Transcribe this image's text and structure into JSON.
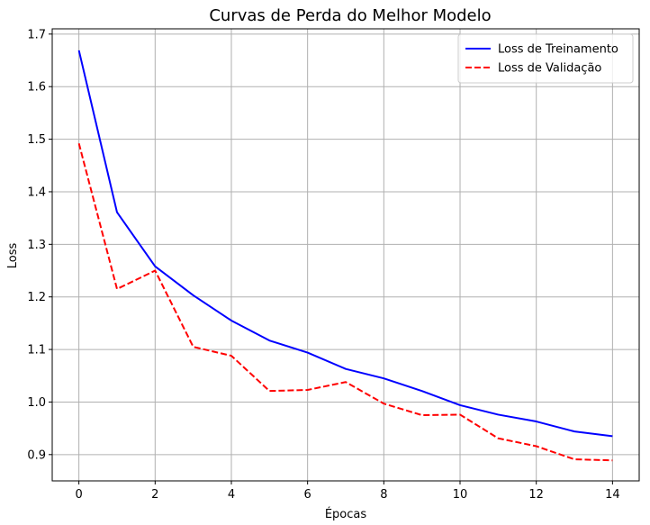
{
  "chart_data": {
    "type": "line",
    "title": "Curvas de Perda do Melhor Modelo",
    "xlabel": "Épocas",
    "ylabel": "Loss",
    "xlim": [
      -0.7,
      14.7
    ],
    "ylim": [
      0.85,
      1.71
    ],
    "xticks": [
      0,
      2,
      4,
      6,
      8,
      10,
      12,
      14
    ],
    "yticks": [
      0.9,
      1.0,
      1.1,
      1.2,
      1.3,
      1.4,
      1.5,
      1.6,
      1.7
    ],
    "grid": true,
    "legend_position": "top-right",
    "x": [
      0,
      1,
      2,
      3,
      4,
      5,
      6,
      7,
      8,
      9,
      10,
      11,
      12,
      13,
      14
    ],
    "series": [
      {
        "name": "Loss de Treinamento",
        "color": "#0000ff",
        "linestyle": "solid",
        "values": [
          1.669,
          1.361,
          1.258,
          1.203,
          1.155,
          1.117,
          1.094,
          1.063,
          1.045,
          1.021,
          0.994,
          0.976,
          0.963,
          0.944,
          0.935
        ]
      },
      {
        "name": "Loss de Validação",
        "color": "#ff0000",
        "linestyle": "dashed",
        "values": [
          1.492,
          1.215,
          1.25,
          1.105,
          1.088,
          1.021,
          1.023,
          1.038,
          0.997,
          0.975,
          0.976,
          0.931,
          0.916,
          0.891,
          0.889
        ]
      }
    ]
  }
}
